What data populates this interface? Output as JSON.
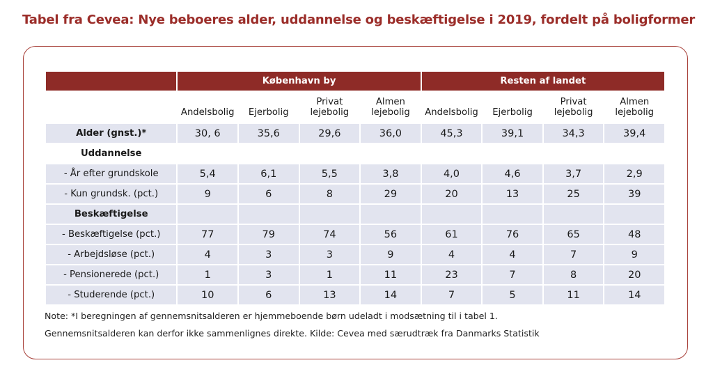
{
  "title": "Tabel fra Cevea: Nye beboeres alder, uddannelse og beskæftigelse i 2019, fordelt på boligformer",
  "groups": [
    "København by",
    "Resten af landet"
  ],
  "columns": [
    {
      "line1": "",
      "line2": "Andelsbolig"
    },
    {
      "line1": "",
      "line2": "Ejerbolig"
    },
    {
      "line1": "Privat",
      "line2": "lejebolig"
    },
    {
      "line1": "Almen",
      "line2": "lejebolig"
    },
    {
      "line1": "",
      "line2": "Andelsbolig"
    },
    {
      "line1": "",
      "line2": "Ejerbolig"
    },
    {
      "line1": "Privat",
      "line2": "lejebolig"
    },
    {
      "line1": "Almen",
      "line2": "lejebolig"
    }
  ],
  "rows": [
    {
      "label": "Alder (gnst.)*",
      "bold": true,
      "values": [
        "30, 6",
        "35,6",
        "29,6",
        "36,0",
        "45,3",
        "39,1",
        "34,3",
        "39,4"
      ]
    },
    {
      "label": "Uddannelse",
      "bold": true,
      "section": true,
      "values": []
    },
    {
      "label": "- År efter grundskole",
      "values": [
        "5,4",
        "6,1",
        "5,5",
        "3,8",
        "4,0",
        "4,6",
        "3,7",
        "2,9"
      ]
    },
    {
      "label": "- Kun grundsk. (pct.)",
      "values": [
        "9",
        "6",
        "8",
        "29",
        "20",
        "13",
        "25",
        "39"
      ]
    },
    {
      "label": "Beskæftigelse",
      "bold": true,
      "values": [
        "",
        "",
        "",
        "",
        "",
        "",
        "",
        ""
      ]
    },
    {
      "label": "- Beskæftigelse (pct.)",
      "values": [
        "77",
        "79",
        "74",
        "56",
        "61",
        "76",
        "65",
        "48"
      ]
    },
    {
      "label": "- Arbejdsløse (pct.)",
      "values": [
        "4",
        "3",
        "3",
        "9",
        "4",
        "4",
        "7",
        "9"
      ]
    },
    {
      "label": "- Pensionerede (pct.)",
      "values": [
        "1",
        "3",
        "1",
        "11",
        "23",
        "7",
        "8",
        "20"
      ]
    },
    {
      "label": "- Studerende (pct.)",
      "values": [
        "10",
        "6",
        "13",
        "14",
        "7",
        "5",
        "11",
        "14"
      ]
    }
  ],
  "notes": [
    "Note: *I beregningen af gennemsnitsalderen er hjemmeboende børn udeladt i modsætning til i tabel 1.",
    "Gennemsnitsalderen kan derfor ikke sammenlignes direkte. Kilde: Cevea med særudtræk fra Danmarks Statistik"
  ]
}
